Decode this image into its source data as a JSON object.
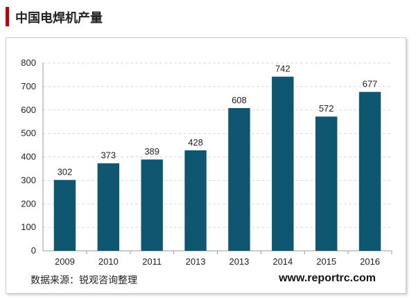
{
  "header": {
    "title": "中国电焊机产量"
  },
  "footer": {
    "source": "数据来源：锐观咨询整理",
    "website": "www.reportrc.com"
  },
  "colors": {
    "bar": "#0f5670",
    "accent": "#c00000"
  },
  "chart_data": {
    "type": "bar",
    "title": "",
    "xlabel": "",
    "ylabel": "",
    "categories": [
      "2009",
      "2010",
      "2011",
      "2013",
      "2013",
      "2014",
      "2015",
      "2016"
    ],
    "values": [
      302,
      373,
      389,
      428,
      608,
      742,
      572,
      677
    ],
    "ylim": [
      0,
      800
    ],
    "yticks": [
      0,
      100,
      200,
      300,
      400,
      500,
      600,
      700,
      800
    ],
    "grid": true,
    "legend": "none",
    "data_labels": true
  }
}
